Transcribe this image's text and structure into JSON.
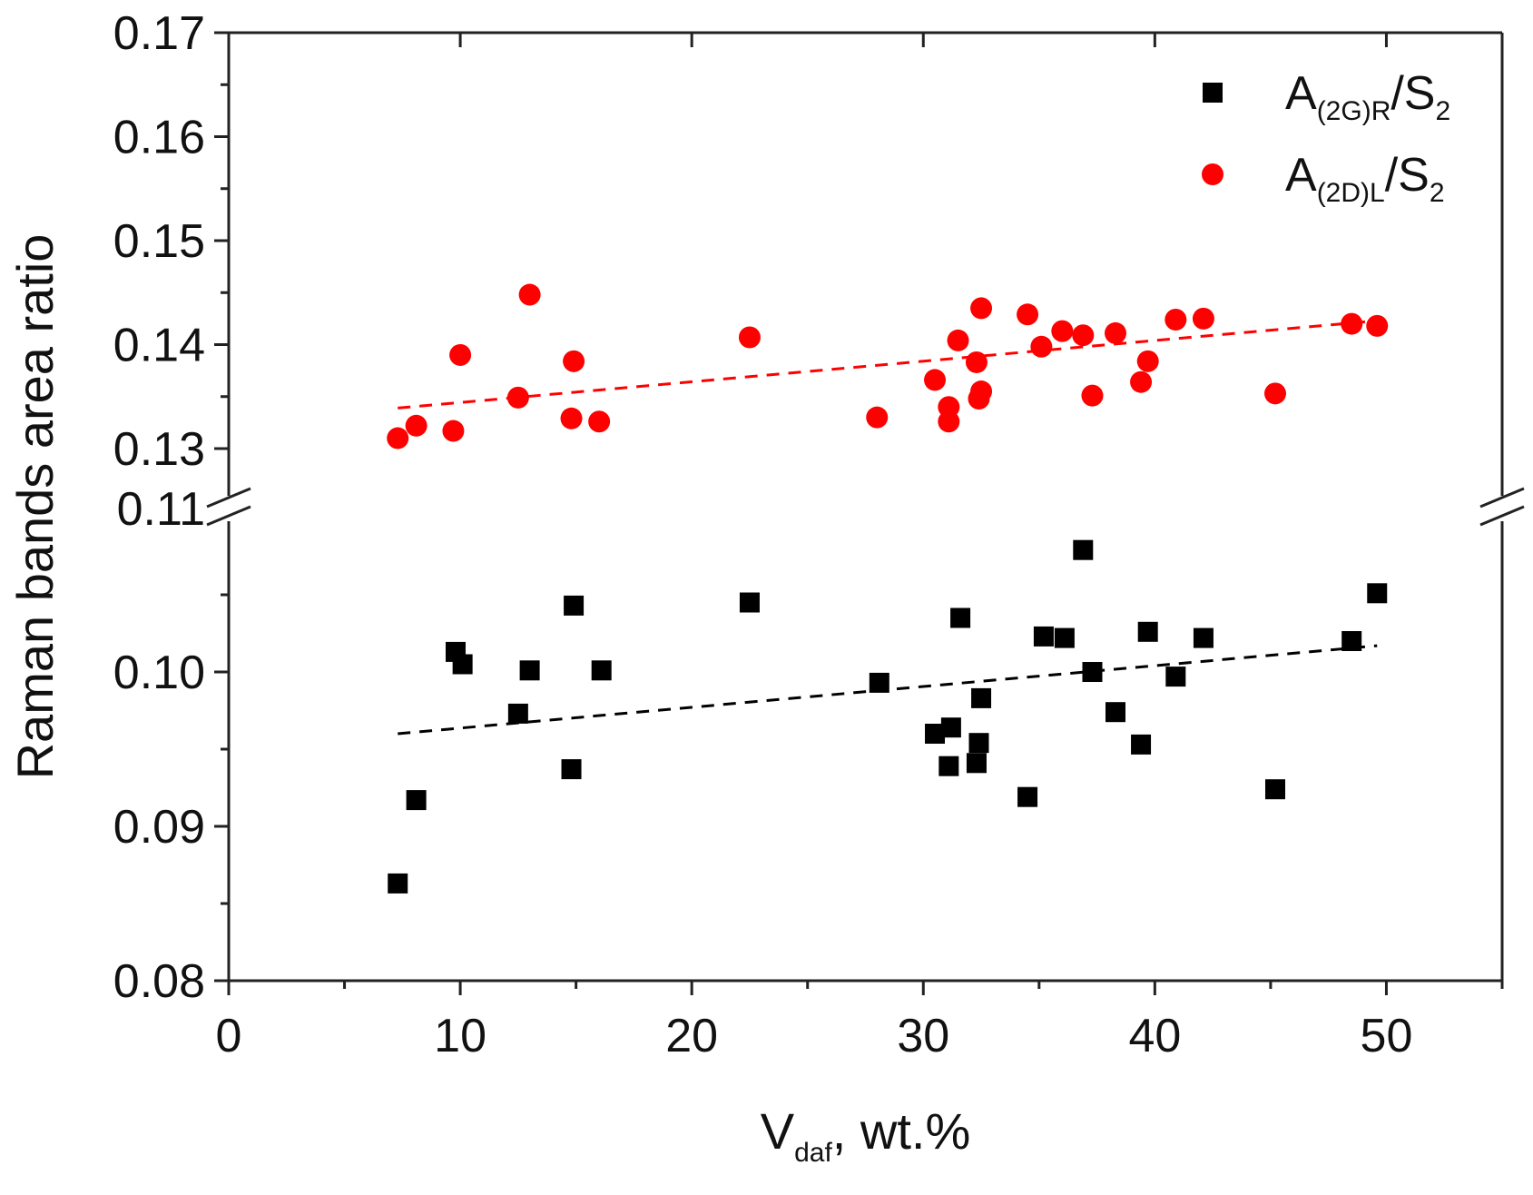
{
  "chart_data": {
    "type": "scatter",
    "xlabel": "V",
    "xlabel_sub": "daf",
    "xlabel_suffix": ", wt.%",
    "ylabel": "Raman bands area ratio",
    "xlim": [
      0,
      55
    ],
    "x_ticks": [
      0,
      10,
      20,
      30,
      40,
      50
    ],
    "x_tick_labels": [
      "0",
      "10",
      "20",
      "30",
      "40",
      "50"
    ],
    "y_axis_break": true,
    "y_upper_segment": {
      "ylim": [
        0.11,
        0.17
      ],
      "ticks": [
        0.11,
        0.13,
        0.14,
        0.15,
        0.16,
        0.17
      ],
      "tick_labels": [
        "0.11",
        "0.13",
        "0.14",
        "0.15",
        "0.16",
        "0.17"
      ]
    },
    "y_lower_segment": {
      "ylim": [
        0.08,
        0.11
      ],
      "ticks": [
        0.08,
        0.09,
        0.1
      ],
      "tick_labels": [
        "0.08",
        "0.09",
        "0.10"
      ]
    },
    "legend_position": "top-right",
    "series": [
      {
        "name": "A(2G)R/S2",
        "label_main": "A",
        "label_sub": "(2G)R",
        "label_mid": "/S",
        "label_sub2": "2",
        "marker": "square",
        "color": "#000000",
        "x": [
          7.3,
          8.1,
          9.8,
          10.1,
          12.5,
          13.0,
          14.8,
          14.9,
          16.1,
          22.5,
          28.1,
          30.5,
          31.1,
          31.2,
          31.6,
          32.3,
          32.4,
          32.5,
          34.5,
          35.2,
          36.1,
          36.9,
          37.3,
          38.3,
          39.4,
          39.7,
          40.9,
          42.1,
          45.2,
          48.5,
          49.6
        ],
        "y": [
          0.0863,
          0.0917,
          0.1013,
          0.1005,
          0.0973,
          0.1001,
          0.0937,
          0.1043,
          0.1001,
          0.1045,
          0.0993,
          0.096,
          0.0939,
          0.0964,
          0.1035,
          0.0941,
          0.0954,
          0.0983,
          0.0919,
          0.1023,
          0.1022,
          0.1079,
          0.1,
          0.0974,
          0.0953,
          0.1026,
          0.0997,
          0.1022,
          0.0924,
          0.102,
          0.1051
        ]
      },
      {
        "name": "A(2D)L/S2",
        "label_main": "A",
        "label_sub": "(2D)L",
        "label_mid": "/S",
        "label_sub2": "2",
        "marker": "circle",
        "color": "#ff0000",
        "x": [
          7.3,
          8.1,
          9.7,
          10.0,
          12.5,
          13.0,
          14.8,
          14.9,
          16.0,
          22.5,
          28.0,
          30.5,
          31.1,
          31.1,
          31.5,
          32.3,
          32.4,
          32.5,
          32.5,
          34.5,
          35.1,
          36.0,
          36.9,
          37.3,
          38.3,
          39.4,
          39.7,
          40.9,
          42.1,
          45.2,
          48.5,
          49.6
        ],
        "y": [
          0.131,
          0.1322,
          0.1317,
          0.139,
          0.1349,
          0.1448,
          0.1329,
          0.1384,
          0.1326,
          0.1407,
          0.133,
          0.1366,
          0.1326,
          0.134,
          0.1404,
          0.1383,
          0.1348,
          0.1355,
          0.1435,
          0.1429,
          0.1398,
          0.1413,
          0.1409,
          0.1351,
          0.1411,
          0.1364,
          0.1384,
          0.1424,
          0.1425,
          0.1353,
          0.142,
          0.1418
        ]
      }
    ],
    "fits": [
      {
        "series": "A(2G)R/S2",
        "x": [
          7.3,
          49.6
        ],
        "y": [
          0.096,
          0.1017
        ],
        "color": "#000000",
        "style": "dashed"
      },
      {
        "series": "A(2D)L/S2",
        "x": [
          7.3,
          49.6
        ],
        "y": [
          0.1339,
          0.1423
        ],
        "color": "#ff0000",
        "style": "dashed"
      }
    ]
  }
}
